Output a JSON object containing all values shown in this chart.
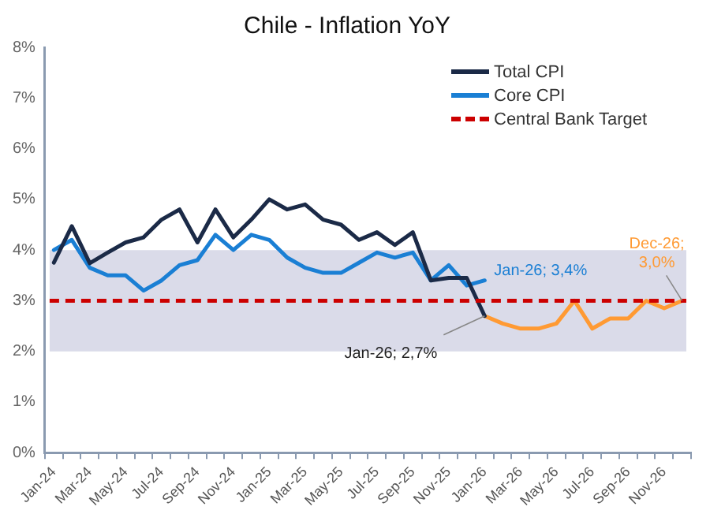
{
  "chart_data": {
    "type": "line",
    "title": "Chile - Inflation YoY",
    "categories": [
      "Jan-24",
      null,
      "Mar-24",
      null,
      "May-24",
      null,
      "Jul-24",
      null,
      "Sep-24",
      null,
      "Nov-24",
      null,
      "Jan-25",
      null,
      "Mar-25",
      null,
      "May-25",
      null,
      "Jul-25",
      null,
      "Sep-25",
      null,
      "Nov-25",
      null,
      "Jan-26",
      null,
      "Mar-26",
      null,
      "May-26",
      null,
      "Jul-26",
      null,
      "Sep-26",
      null,
      "Nov-26",
      null
    ],
    "series": [
      {
        "name": "Total CPI",
        "color": "#1b2a47",
        "values": [
          3.75,
          4.47,
          3.74,
          3.95,
          4.15,
          4.25,
          4.6,
          4.8,
          4.15,
          4.8,
          4.25,
          4.6,
          5.0,
          4.8,
          4.9,
          4.6,
          4.5,
          4.2,
          4.35,
          4.1,
          4.35,
          3.4,
          3.45,
          3.45,
          2.7,
          null,
          null,
          null,
          null,
          null,
          null,
          null,
          null,
          null,
          null,
          null
        ]
      },
      {
        "name": "Core CPI",
        "color": "#1a7fd4",
        "values": [
          4.0,
          4.2,
          3.65,
          3.5,
          3.5,
          3.2,
          3.4,
          3.7,
          3.8,
          4.3,
          4.0,
          4.3,
          4.2,
          3.85,
          3.65,
          3.55,
          3.55,
          3.75,
          3.95,
          3.85,
          3.95,
          3.4,
          3.7,
          3.3,
          3.4,
          null,
          null,
          null,
          null,
          null,
          null,
          null,
          null,
          null,
          null,
          null
        ]
      },
      {
        "color": "#ff9a33",
        "values": [
          null,
          null,
          null,
          null,
          null,
          null,
          null,
          null,
          null,
          null,
          null,
          null,
          null,
          null,
          null,
          null,
          null,
          null,
          null,
          null,
          null,
          null,
          null,
          null,
          2.7,
          2.55,
          2.45,
          2.45,
          2.55,
          3.0,
          2.45,
          2.65,
          2.65,
          3.0,
          2.85,
          3.0
        ]
      }
    ],
    "ylim": [
      0,
      8
    ],
    "yticks": [
      {
        "value": 0,
        "label": "0%"
      },
      {
        "value": 1,
        "label": "1%"
      },
      {
        "value": 2,
        "label": "2%"
      },
      {
        "value": 3,
        "label": "3%"
      },
      {
        "value": 4,
        "label": "4%"
      },
      {
        "value": 5,
        "label": "5%"
      },
      {
        "value": 6,
        "label": "6%"
      },
      {
        "value": 7,
        "label": "7%"
      },
      {
        "value": 8,
        "label": "8%"
      }
    ],
    "ref_lines": [
      {
        "axis": "y",
        "value": 3,
        "label": "Central Bank Target",
        "color": "#cc0000",
        "line_style": "dashed"
      }
    ],
    "bands": [
      {
        "axis": "y",
        "from": 2,
        "to": 4,
        "color": "#dadbe9"
      }
    ],
    "annotations": [
      {
        "text": "Jan-26; 3,4%",
        "x": "Jan-26",
        "y": 3.4
      },
      {
        "text": "Jan-26; 2,7%",
        "x": "Jan-26",
        "y": 2.7
      },
      {
        "text": "Dec-26; 3,0%",
        "y": 3.0
      }
    ],
    "grid": false,
    "legend": "top right",
    "marker": "none",
    "line_style": "solid"
  }
}
